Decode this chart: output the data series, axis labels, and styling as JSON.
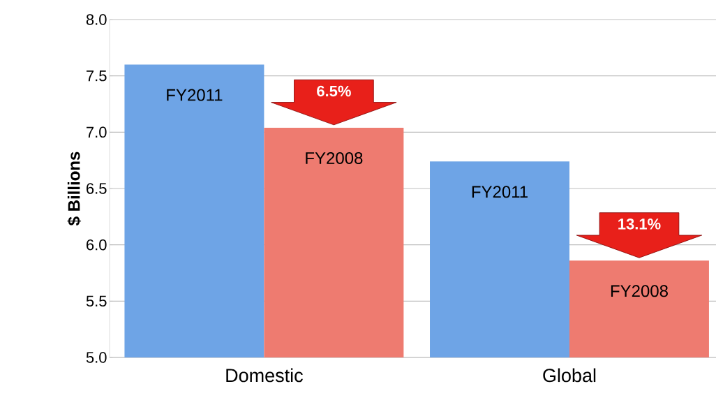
{
  "chart_data": {
    "type": "bar",
    "ylabel": "$ Billions",
    "categories": [
      "Domestic",
      "Global"
    ],
    "series": [
      {
        "name": "FY2011",
        "color": "#6ea4e6",
        "values": [
          7.6,
          6.74
        ]
      },
      {
        "name": "FY2008",
        "color": "#ee7b70",
        "values": [
          7.04,
          5.86
        ]
      }
    ],
    "annotations": [
      "6.5%",
      "13.1%"
    ],
    "ylim": [
      5,
      8
    ],
    "yticks": [
      {
        "value": 5,
        "label": "5.0"
      },
      {
        "value": 5.5,
        "label": "5.5"
      },
      {
        "value": 6,
        "label": "6.0"
      },
      {
        "value": 6.5,
        "label": "6.5"
      },
      {
        "value": 7,
        "label": "7.0"
      },
      {
        "value": 7.5,
        "label": "7.5"
      },
      {
        "value": 8,
        "label": "8.0"
      }
    ],
    "grid": "y"
  }
}
